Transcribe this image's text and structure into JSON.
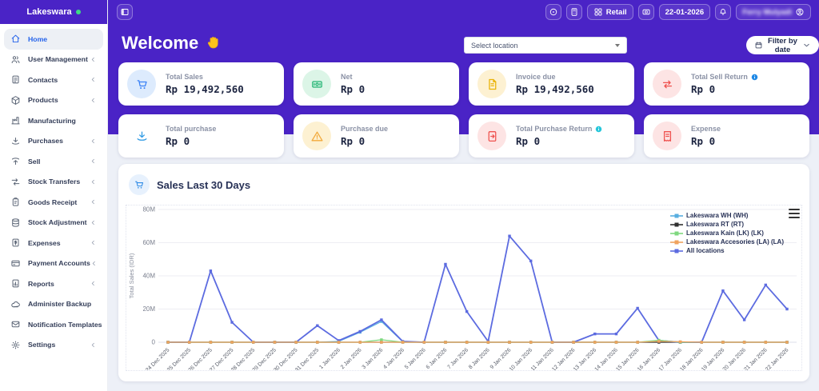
{
  "brand": {
    "name": "Lakeswara",
    "status_color": "#3ddc84"
  },
  "topbar": {
    "retail_label": "Retail",
    "date": "22-01-2026",
    "user_name": "Ferry Mulyadi"
  },
  "sidebar": {
    "items": [
      {
        "label": "Home",
        "icon": "home-icon",
        "active": true,
        "chevron": false
      },
      {
        "label": "User Management",
        "icon": "users-icon",
        "active": false,
        "chevron": true
      },
      {
        "label": "Contacts",
        "icon": "contacts-icon",
        "active": false,
        "chevron": true
      },
      {
        "label": "Products",
        "icon": "box-icon",
        "active": false,
        "chevron": true
      },
      {
        "label": "Manufacturing",
        "icon": "factory-icon",
        "active": false,
        "chevron": false
      },
      {
        "label": "Purchases",
        "icon": "download-icon",
        "active": false,
        "chevron": true
      },
      {
        "label": "Sell",
        "icon": "upload-icon",
        "active": false,
        "chevron": true
      },
      {
        "label": "Stock Transfers",
        "icon": "transfer-icon",
        "active": false,
        "chevron": true
      },
      {
        "label": "Goods Receipt",
        "icon": "clipboard-icon",
        "active": false,
        "chevron": true
      },
      {
        "label": "Stock Adjustment",
        "icon": "database-icon",
        "active": false,
        "chevron": true
      },
      {
        "label": "Expenses",
        "icon": "file-dollar-icon",
        "active": false,
        "chevron": true
      },
      {
        "label": "Payment Accounts",
        "icon": "credit-card-icon",
        "active": false,
        "chevron": true
      },
      {
        "label": "Reports",
        "icon": "report-icon",
        "active": false,
        "chevron": true
      },
      {
        "label": "Administer Backup",
        "icon": "cloud-icon",
        "active": false,
        "chevron": false
      },
      {
        "label": "Notification Templates",
        "icon": "mail-icon",
        "active": false,
        "chevron": false
      },
      {
        "label": "Settings",
        "icon": "gear-icon",
        "active": false,
        "chevron": true
      }
    ]
  },
  "main": {
    "welcome": "Welcome",
    "location_placeholder": "Select location",
    "filter_by_date": "Filter by date",
    "cards": [
      {
        "label": "Total Sales",
        "value": "Rp 19,492,560",
        "icon": "cart-icon",
        "color": "#3b82f6",
        "bg": "#ddebfd",
        "info": false
      },
      {
        "label": "Net",
        "value": "Rp 0",
        "icon": "banknote-icon",
        "color": "#22b573",
        "bg": "#dcf5e7",
        "info": false
      },
      {
        "label": "Invoice due",
        "value": "Rp 19,492,560",
        "icon": "invoice-icon",
        "color": "#eab308",
        "bg": "#fdf1d2",
        "info": false
      },
      {
        "label": "Total Sell Return",
        "value": "Rp 0",
        "icon": "swap-icon",
        "color": "#ef5350",
        "bg": "#fde4e4",
        "info": true,
        "info_color": "#1e88e5"
      },
      {
        "label": "Total purchase",
        "value": "Rp 0",
        "icon": "download-icon",
        "color": "#2e9ae4",
        "bg": "#ffffff",
        "info": false
      },
      {
        "label": "Purchase due",
        "value": "Rp 0",
        "icon": "warning-icon",
        "color": "#f2a93b",
        "bg": "#fdf1d2",
        "info": false
      },
      {
        "label": "Total Purchase Return",
        "value": "Rp 0",
        "icon": "return-doc-icon",
        "color": "#ef5350",
        "bg": "#fde4e4",
        "info": true,
        "info_color": "#26c6da"
      },
      {
        "label": "Expense",
        "value": "Rp 0",
        "icon": "receipt-icon",
        "color": "#ef5350",
        "bg": "#fde4e4",
        "info": false
      }
    ]
  },
  "chart_data": {
    "type": "line",
    "title": "Sales Last 30 Days",
    "xlabel": "",
    "ylabel": "Total Sales (IDR)",
    "ylim": [
      0,
      80000000
    ],
    "ytick_labels": [
      "0",
      "20M",
      "40M",
      "60M",
      "80M"
    ],
    "grid": true,
    "legend_position": "top-right",
    "categories": [
      "24 Dec 2025",
      "25 Dec 2025",
      "26 Dec 2025",
      "27 Dec 2025",
      "28 Dec 2025",
      "29 Dec 2025",
      "30 Dec 2025",
      "31 Dec 2025",
      "1 Jan 2026",
      "2 Jan 2026",
      "3 Jan 2026",
      "4 Jan 2026",
      "5 Jan 2026",
      "6 Jan 2026",
      "7 Jan 2026",
      "8 Jan 2026",
      "9 Jan 2026",
      "10 Jan 2026",
      "11 Jan 2026",
      "12 Jan 2026",
      "13 Jan 2026",
      "14 Jan 2026",
      "15 Jan 2026",
      "16 Jan 2026",
      "17 Jan 2026",
      "18 Jan 2026",
      "19 Jan 2026",
      "20 Jan 2026",
      "21 Jan 2026",
      "22 Jan 2026"
    ],
    "series": [
      {
        "name": "Lakeswara WH (WH)",
        "color": "#58aee0",
        "values": [
          0,
          0,
          0,
          0,
          0,
          0,
          0,
          0,
          500000,
          6000000,
          12500000,
          300000,
          0,
          0,
          0,
          0,
          0,
          0,
          0,
          0,
          0,
          0,
          0,
          0,
          0,
          0,
          0,
          0,
          0,
          0
        ]
      },
      {
        "name": "Lakeswara RT (RT)",
        "color": "#303030",
        "values": [
          0,
          0,
          0,
          0,
          0,
          0,
          0,
          0,
          0,
          0,
          0,
          0,
          0,
          0,
          0,
          0,
          0,
          0,
          0,
          0,
          0,
          0,
          0,
          0,
          0,
          0,
          0,
          0,
          0,
          0
        ]
      },
      {
        "name": "Lakeswara Kain (LK) (LK)",
        "color": "#7fd87f",
        "values": [
          0,
          0,
          0,
          0,
          0,
          0,
          0,
          0,
          0,
          0,
          1500000,
          0,
          0,
          0,
          0,
          0,
          0,
          0,
          0,
          0,
          0,
          0,
          0,
          1200000,
          0,
          0,
          0,
          0,
          0,
          0
        ]
      },
      {
        "name": "Lakeswara Accesories (LA) (LA)",
        "color": "#f0a35e",
        "values": [
          0,
          0,
          0,
          0,
          0,
          0,
          0,
          0,
          0,
          0,
          0,
          0,
          0,
          0,
          0,
          0,
          0,
          0,
          0,
          0,
          0,
          0,
          0,
          500000,
          300000,
          0,
          0,
          0,
          0,
          0
        ]
      },
      {
        "name": "All locations",
        "color": "#5c6be0",
        "values": [
          0,
          0,
          43000000,
          12000000,
          0,
          0,
          0,
          10000000,
          1000000,
          6500000,
          13500000,
          500000,
          0,
          47000000,
          18500000,
          500000,
          64000000,
          49000000,
          0,
          0,
          5000000,
          5000000,
          20500000,
          1000000,
          0,
          0,
          31000000,
          13500000,
          34500000,
          20000000
        ]
      }
    ]
  }
}
